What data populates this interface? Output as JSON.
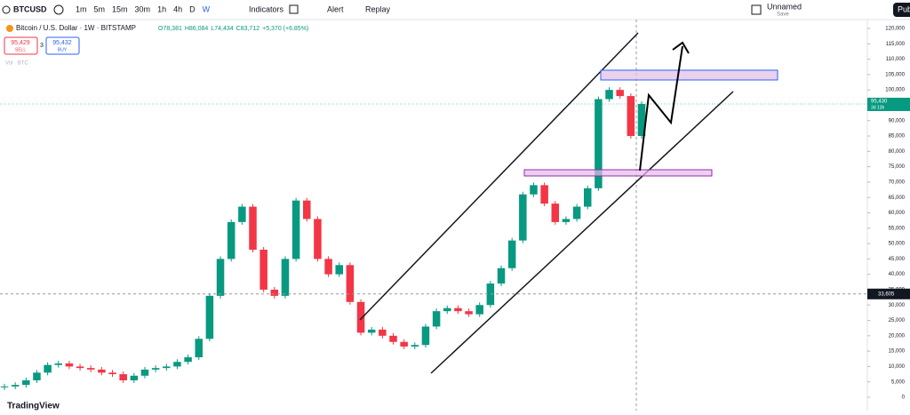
{
  "toolbar": {
    "symbol": "BTCUSD",
    "intervals": [
      "1m",
      "5m",
      "15m",
      "30m",
      "1h",
      "4h",
      "D",
      "W"
    ],
    "indicators": "Indicators",
    "alert": "Alert",
    "replay": "Replay",
    "layout_name": "Unnamed",
    "layout_status": "Save",
    "publish": "Pub"
  },
  "legend": {
    "title": "Bitcoin / U.S. Dollar · 1W · BITSTAMP",
    "ohlc": [
      "O78,381",
      "H86,084",
      "L74,434",
      "C83,712",
      "+5,370 (+6.85%)"
    ],
    "sell_price": "95,429",
    "sell_label": "SELL",
    "spread": "3",
    "buy_price": "95,432",
    "buy_label": "BUY",
    "volume": "Vol · BTC"
  },
  "chart_data": {
    "type": "candlestick",
    "values": [
      3500,
      4000,
      5500,
      8000,
      10500,
      11000,
      10000,
      9500,
      9000,
      8000,
      7500,
      5500,
      7000,
      9000,
      9500,
      10000,
      11500,
      13000,
      19000,
      33000,
      45000,
      57000,
      62000,
      48000,
      35000,
      33000,
      45000,
      64000,
      58000,
      45000,
      40000,
      43000,
      31000,
      21000,
      22000,
      20000,
      18000,
      16500,
      17000,
      23000,
      28000,
      29000,
      28000,
      27000,
      30000,
      37000,
      42000,
      51000,
      66000,
      69000,
      63000,
      57000,
      58000,
      62000,
      68000,
      97000,
      100000,
      98000,
      85000,
      95430
    ],
    "ylim": [
      0,
      120000
    ],
    "yticks": [
      {
        "value": 120000,
        "label": "120,000"
      },
      {
        "value": 115000,
        "label": "115,000"
      },
      {
        "value": 110000,
        "label": "110,000"
      },
      {
        "value": 105000,
        "label": "105,000"
      },
      {
        "value": 100000,
        "label": "100,000"
      },
      {
        "value": 95000,
        "label": "95,000"
      },
      {
        "value": 90000,
        "label": "90,000"
      },
      {
        "value": 85000,
        "label": "85,000"
      },
      {
        "value": 80000,
        "label": "80,000"
      },
      {
        "value": 75000,
        "label": "75,000"
      },
      {
        "value": 70000,
        "label": "70,000"
      },
      {
        "value": 65000,
        "label": "65,000"
      },
      {
        "value": 60000,
        "label": "60,000"
      },
      {
        "value": 55000,
        "label": "55,000"
      },
      {
        "value": 50000,
        "label": "50,000"
      },
      {
        "value": 45000,
        "label": "45,000"
      },
      {
        "value": 40000,
        "label": "40,000"
      },
      {
        "value": 35000,
        "label": "35,000"
      },
      {
        "value": 30000,
        "label": "30,000"
      },
      {
        "value": 25000,
        "label": "25,000"
      },
      {
        "value": 20000,
        "label": "20,000"
      },
      {
        "value": 15000,
        "label": "15,000"
      },
      {
        "value": 10000,
        "label": "10,000"
      },
      {
        "value": 5000,
        "label": "5,000"
      },
      0
    ],
    "last_price": {
      "value": 95430,
      "label": "95,430"
    },
    "countdown": "3d 13h",
    "crosshair": {
      "value": 33605,
      "label": "33,605"
    },
    "up_color": "#089981",
    "down_color": "#f23645"
  },
  "brand": "TradingView"
}
